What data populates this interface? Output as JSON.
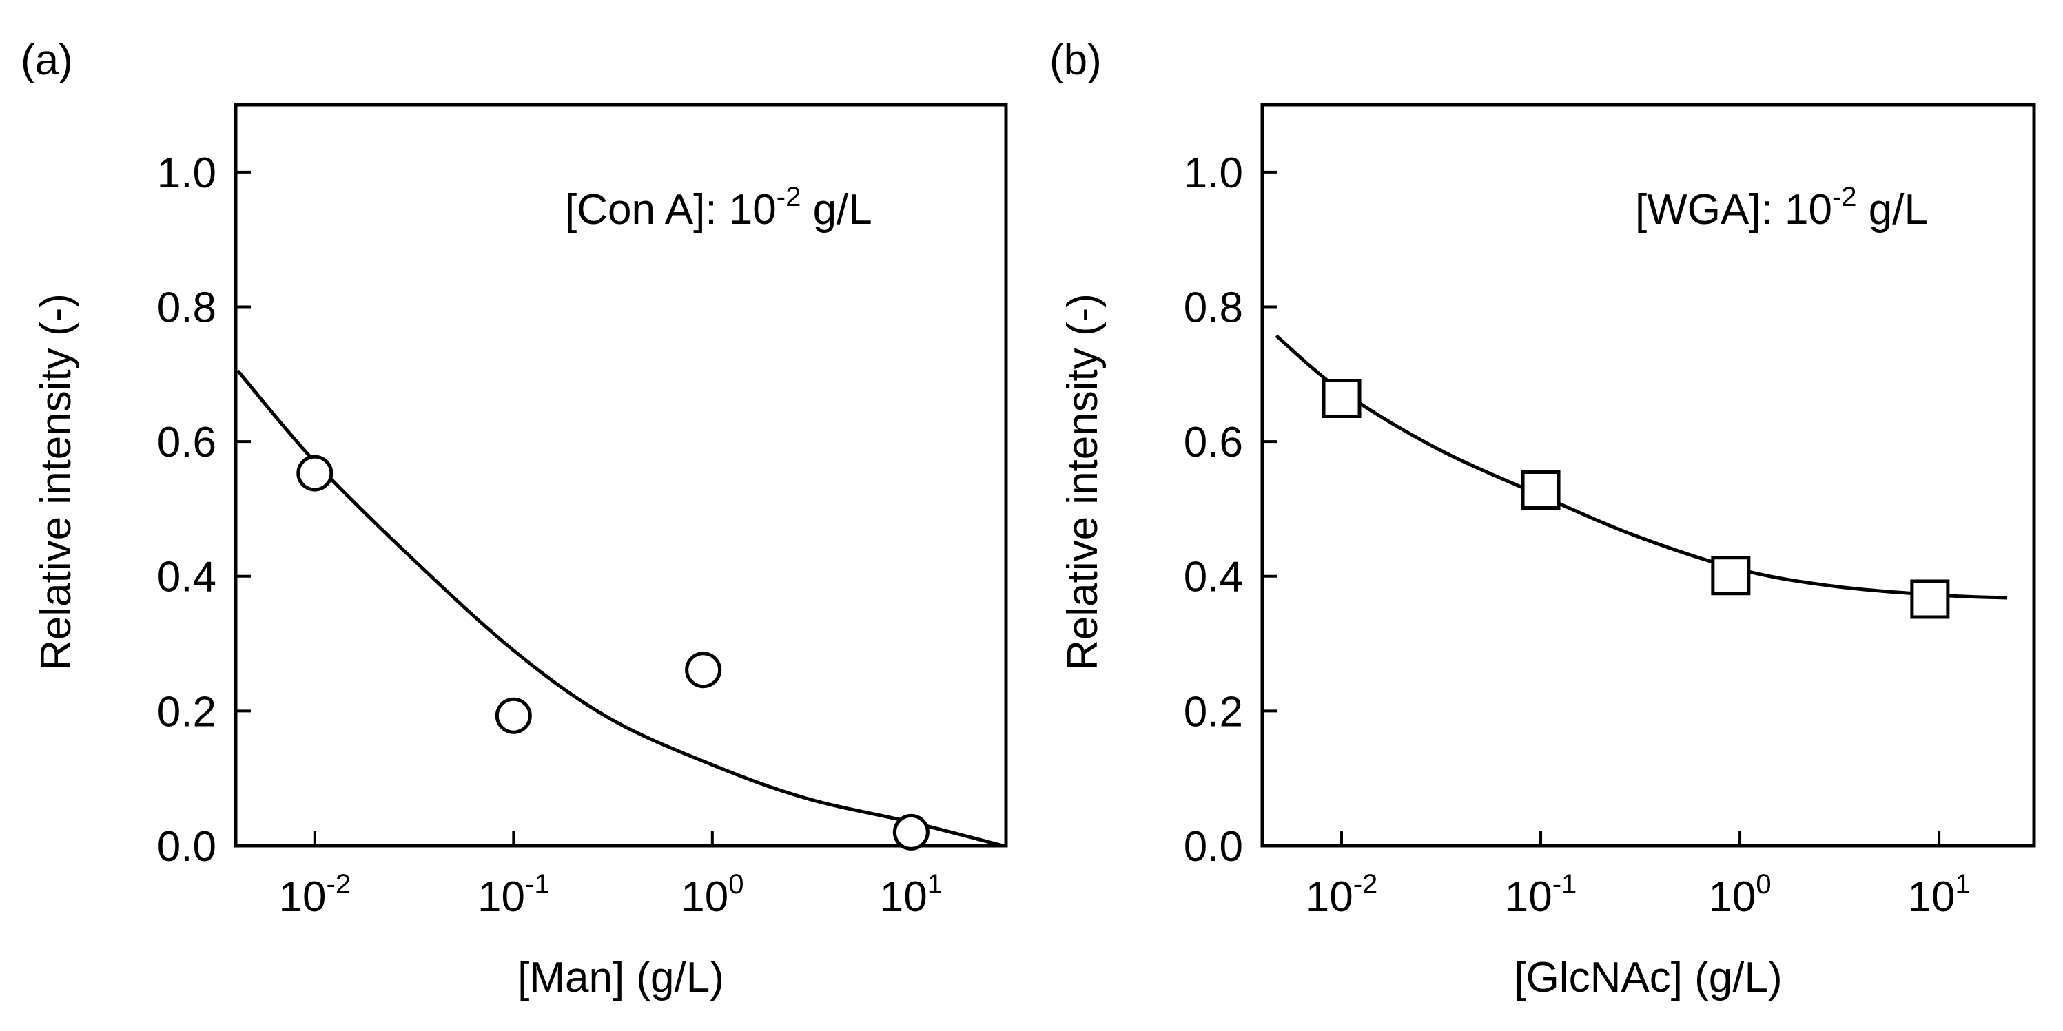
{
  "chart_data": [
    {
      "panel_label": "(a)",
      "type": "scatter",
      "title": "",
      "annotation": {
        "base": "[Con A]: 10",
        "sup": "-2",
        "tail": " g/L"
      },
      "xlabel": "[Man] (g/L)",
      "ylabel": "Relative intensity (-)",
      "xscale": "log",
      "xlim": [
        0.004,
        30
      ],
      "ylim": [
        0.0,
        1.1
      ],
      "xticks": [
        {
          "value": 0.01,
          "base": "10",
          "sup": "-2"
        },
        {
          "value": 0.1,
          "base": "10",
          "sup": "-1"
        },
        {
          "value": 1,
          "base": "10",
          "sup": "0"
        },
        {
          "value": 10,
          "base": "10",
          "sup": "1"
        }
      ],
      "yticks": [
        "0.0",
        "0.2",
        "0.4",
        "0.6",
        "0.8",
        "1.0"
      ],
      "marker": "circle",
      "series": [
        {
          "name": "data",
          "x": [
            0.01,
            0.1,
            0.9,
            10
          ],
          "y": [
            0.553,
            0.193,
            0.261,
            0.02
          ]
        }
      ],
      "fit": {
        "x": [
          0.0041,
          0.01,
          0.03,
          0.1,
          0.3,
          1,
          3,
          10,
          29
        ],
        "y": [
          0.705,
          0.57,
          0.43,
          0.29,
          0.19,
          0.12,
          0.07,
          0.035,
          0.0
        ]
      }
    },
    {
      "panel_label": "(b)",
      "type": "scatter",
      "title": "",
      "annotation": {
        "base": "[WGA]: 10",
        "sup": "-2",
        "tail": " g/L"
      },
      "xlabel": "[GlcNAc] (g/L)",
      "ylabel": "Relative intensity (-)",
      "xscale": "log",
      "xlim": [
        0.004,
        30
      ],
      "ylim": [
        0.0,
        1.1
      ],
      "xticks": [
        {
          "value": 0.01,
          "base": "10",
          "sup": "-2"
        },
        {
          "value": 0.1,
          "base": "10",
          "sup": "-1"
        },
        {
          "value": 1,
          "base": "10",
          "sup": "0"
        },
        {
          "value": 10,
          "base": "10",
          "sup": "1"
        }
      ],
      "yticks": [
        "0.0",
        "0.2",
        "0.4",
        "0.6",
        "0.8",
        "1.0"
      ],
      "marker": "square",
      "series": [
        {
          "name": "data",
          "x": [
            0.01,
            0.1,
            0.9,
            9
          ],
          "y": [
            0.664,
            0.528,
            0.401,
            0.366
          ]
        }
      ],
      "fit": {
        "x": [
          0.0047,
          0.01,
          0.03,
          0.1,
          0.3,
          1,
          3,
          10,
          22
        ],
        "y": [
          0.757,
          0.675,
          0.59,
          0.52,
          0.46,
          0.41,
          0.385,
          0.372,
          0.368
        ]
      }
    }
  ]
}
